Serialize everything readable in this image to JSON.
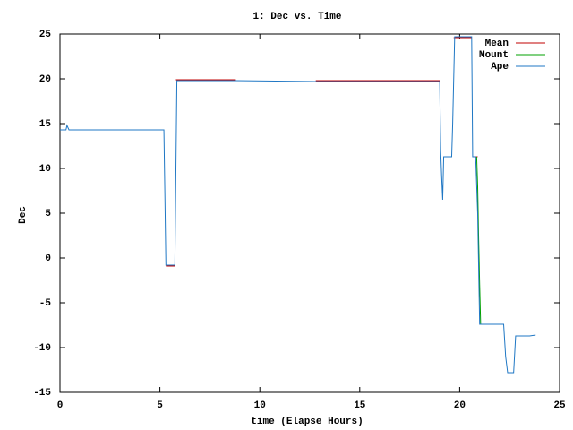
{
  "chart_data": {
    "type": "line",
    "title": "1: Dec vs. Time",
    "x_label": "time (Elapse Hours)",
    "y_label": "Dec",
    "xlim": [
      0,
      25
    ],
    "xticks": [
      0,
      5,
      10,
      15,
      20,
      25
    ],
    "ylim": [
      -15,
      25
    ],
    "yticks": [
      -15,
      -10,
      -5,
      0,
      5,
      10,
      15,
      20,
      25
    ],
    "grid": false,
    "legend": "top-right",
    "series": [
      {
        "name": "Mean",
        "color": "#c00000",
        "x": [
          5.3,
          5.75,
          5.8,
          5.8,
          8.8,
          8.85,
          12.8,
          19.0,
          19.05,
          19.2,
          19.6,
          19.65,
          19.7,
          20.6,
          20.65,
          20.7,
          20.9
        ],
        "values": [
          -0.9,
          -0.9,
          null,
          19.9,
          19.9,
          null,
          19.8,
          19.8,
          null,
          11.3,
          11.3,
          null,
          24.6,
          24.6,
          null,
          11.3,
          11.3
        ]
      },
      {
        "name": "Mount",
        "color": "#00a000",
        "x": [
          20.85,
          20.9,
          20.95,
          21.0,
          21.05,
          21.1
        ],
        "values": [
          11.3,
          8,
          2,
          -3,
          -7.4,
          -7.4
        ]
      },
      {
        "name": "Ape",
        "color": "#1f77c4",
        "x": [
          0,
          0.3,
          0.35,
          0.45,
          5.2,
          5.25,
          5.3,
          5.75,
          5.8,
          5.85,
          8.8,
          12.8,
          19.0,
          19.05,
          19.1,
          19.15,
          19.2,
          19.6,
          19.65,
          19.75,
          20.6,
          20.65,
          20.8,
          20.9,
          21.0,
          22.2,
          22.3,
          22.4,
          22.7,
          22.8,
          23.5,
          23.8
        ],
        "values": [
          14.3,
          14.3,
          14.8,
          14.3,
          14.3,
          7,
          -0.8,
          -0.8,
          9.5,
          19.8,
          19.8,
          19.7,
          19.7,
          12,
          9,
          6.5,
          11.3,
          11.3,
          15,
          24.7,
          24.7,
          11.3,
          11.3,
          5,
          -7.4,
          -7.4,
          -11,
          -12.8,
          -12.8,
          -8.7,
          -8.7,
          -8.6
        ]
      }
    ]
  }
}
